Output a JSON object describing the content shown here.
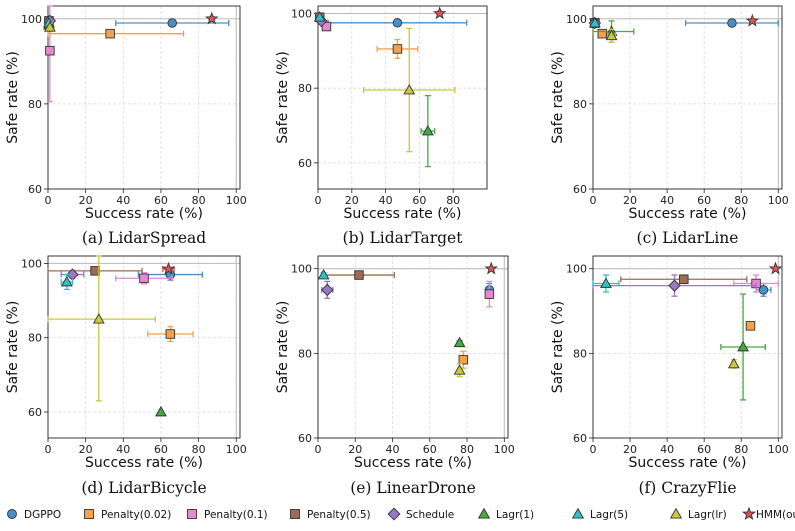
{
  "series_styles": [
    {
      "name": "DGPPO",
      "color": "#4a90c8",
      "marker": "circle"
    },
    {
      "name": "Penalty(0.02)",
      "color": "#f5a04a",
      "marker": "square"
    },
    {
      "name": "Penalty(0.1)",
      "color": "#e389cf",
      "marker": "square"
    },
    {
      "name": "Penalty(0.5)",
      "color": "#9b6b55",
      "marker": "square"
    },
    {
      "name": "Schedule",
      "color": "#9a77c9",
      "marker": "diamond"
    },
    {
      "name": "Lagr(1)",
      "color": "#45a845",
      "marker": "triangle"
    },
    {
      "name": "Lagr(5)",
      "color": "#2fc1c8",
      "marker": "triangle"
    },
    {
      "name": "Lagr(lr)",
      "color": "#c9c93a",
      "marker": "triangle"
    },
    {
      "name": "HMM(ours)",
      "color": "#e05656",
      "marker": "star"
    }
  ],
  "chart_data": [
    {
      "type": "scatter",
      "caption": "(a) LidarSpread",
      "xlabel": "Success rate (%)",
      "ylabel": "Safe rate (%)",
      "xlim": [
        0,
        102
      ],
      "ylim": [
        60,
        103
      ],
      "xticks": [
        0,
        20,
        40,
        60,
        80,
        100
      ],
      "yticks": [
        60,
        80,
        100
      ],
      "grid": true,
      "points": [
        {
          "series": "DGPPO",
          "x": 66,
          "y": 99,
          "xerr": 30,
          "yerr": 0.6
        },
        {
          "series": "Penalty(0.02)",
          "x": 33,
          "y": 96.5,
          "xerr": 39,
          "yerr": 0
        },
        {
          "series": "Penalty(0.1)",
          "x": 1,
          "y": 92.5,
          "xerr": 0,
          "yerr": 12
        },
        {
          "series": "Penalty(0.5)",
          "x": 0.5,
          "y": 99.5,
          "xerr": 0,
          "yerr": 0.5
        },
        {
          "series": "Schedule",
          "x": 1,
          "y": 99.5,
          "xerr": 0,
          "yerr": 0.3
        },
        {
          "series": "Lagr(1)",
          "x": 0.5,
          "y": 98.5,
          "xerr": 0,
          "yerr": 0.6
        },
        {
          "series": "Lagr(5)",
          "x": 0.5,
          "y": 99,
          "xerr": 0,
          "yerr": 0.4
        },
        {
          "series": "Lagr(lr)",
          "x": 1,
          "y": 98,
          "xerr": 0,
          "yerr": 1
        },
        {
          "series": "HMM(ours)",
          "x": 87,
          "y": 100,
          "xerr": 1,
          "yerr": 0.3
        }
      ]
    },
    {
      "type": "scatter",
      "caption": "(b) LidarTarget",
      "xlabel": "Success rate (%)",
      "ylabel": "Safe rate (%)",
      "xlim": [
        0,
        100
      ],
      "ylim": [
        53,
        102
      ],
      "xticks": [
        0,
        20,
        40,
        60,
        80
      ],
      "yticks": [
        60,
        80,
        100
      ],
      "grid": true,
      "points": [
        {
          "series": "DGPPO",
          "x": 47,
          "y": 97.5,
          "xerr": 41,
          "yerr": 0.6
        },
        {
          "series": "Penalty(0.02)",
          "x": 47,
          "y": 90.5,
          "xerr": 12,
          "yerr": 2.5
        },
        {
          "series": "Penalty(0.1)",
          "x": 5,
          "y": 96.5,
          "xerr": 2,
          "yerr": 1
        },
        {
          "series": "Penalty(0.5)",
          "x": 1,
          "y": 99,
          "xerr": 0.5,
          "yerr": 0.6
        },
        {
          "series": "Schedule",
          "x": 2,
          "y": 98,
          "xerr": 1,
          "yerr": 0.6
        },
        {
          "series": "Lagr(1)",
          "x": 65,
          "y": 68.5,
          "xerr": 4,
          "yerr": 9.5
        },
        {
          "series": "Lagr(5)",
          "x": 1,
          "y": 99,
          "xerr": 0.5,
          "yerr": 0.5
        },
        {
          "series": "Lagr(lr)",
          "x": 54,
          "y": 79.5,
          "xerr": 27,
          "yerr": 16.5
        },
        {
          "series": "HMM(ours)",
          "x": 72,
          "y": 100,
          "xerr": 1,
          "yerr": 0.3
        }
      ]
    },
    {
      "type": "scatter",
      "caption": "(c) LidarLine",
      "xlabel": "Success rate (%)",
      "ylabel": "Safe rate (%)",
      "xlim": [
        0,
        102
      ],
      "ylim": [
        60,
        103
      ],
      "xticks": [
        0,
        20,
        40,
        60,
        80,
        100
      ],
      "yticks": [
        60,
        80,
        100
      ],
      "grid": true,
      "points": [
        {
          "series": "DGPPO",
          "x": 75,
          "y": 99,
          "xerr": 25,
          "yerr": 0.4
        },
        {
          "series": "Penalty(0.02)",
          "x": 5,
          "y": 96.5,
          "xerr": 2,
          "yerr": 0.8
        },
        {
          "series": "Penalty(0.1)",
          "x": 1,
          "y": 99,
          "xerr": 0.5,
          "yerr": 0.5
        },
        {
          "series": "Penalty(0.5)",
          "x": 1,
          "y": 99,
          "xerr": 0.5,
          "yerr": 0.5
        },
        {
          "series": "Schedule",
          "x": 1,
          "y": 99,
          "xerr": 0.5,
          "yerr": 0.4
        },
        {
          "series": "Lagr(1)",
          "x": 10,
          "y": 97,
          "xerr": 12,
          "yerr": 2.5
        },
        {
          "series": "Lagr(5)",
          "x": 1,
          "y": 99,
          "xerr": 0.5,
          "yerr": 0.4
        },
        {
          "series": "Lagr(lr)",
          "x": 10,
          "y": 96,
          "xerr": 2,
          "yerr": 1.5
        },
        {
          "series": "HMM(ours)",
          "x": 86,
          "y": 99.5,
          "xerr": 1,
          "yerr": 0.3
        }
      ]
    },
    {
      "type": "scatter",
      "caption": "(d) LidarBicycle",
      "xlabel": "Success rate (%)",
      "ylabel": "Safe rate (%)",
      "xlim": [
        0,
        102
      ],
      "ylim": [
        53,
        102
      ],
      "xticks": [
        0,
        20,
        40,
        60,
        80,
        100
      ],
      "yticks": [
        60,
        80,
        100
      ],
      "grid": true,
      "points": [
        {
          "series": "DGPPO",
          "x": 65,
          "y": 97,
          "xerr": 17,
          "yerr": 1.5
        },
        {
          "series": "Penalty(0.02)",
          "x": 65,
          "y": 81,
          "xerr": 12,
          "yerr": 2
        },
        {
          "series": "Penalty(0.1)",
          "x": 51,
          "y": 96,
          "xerr": 15,
          "yerr": 1.5
        },
        {
          "series": "Penalty(0.5)",
          "x": 25,
          "y": 98,
          "xerr": 25,
          "yerr": 1
        },
        {
          "series": "Schedule",
          "x": 13,
          "y": 97,
          "xerr": 6,
          "yerr": 1
        },
        {
          "series": "Lagr(1)",
          "x": 60,
          "y": 60,
          "xerr": 0,
          "yerr": 0
        },
        {
          "series": "Lagr(5)",
          "x": 10,
          "y": 95,
          "xerr": 3,
          "yerr": 2
        },
        {
          "series": "Lagr(lr)",
          "x": 27,
          "y": 85,
          "xerr": 30,
          "yerr": 22
        },
        {
          "series": "HMM(ours)",
          "x": 64,
          "y": 98.5,
          "xerr": 3,
          "yerr": 0.5
        }
      ]
    },
    {
      "type": "scatter",
      "caption": "(e) LinearDrone",
      "xlabel": "Success rate (%)",
      "ylabel": "Safe rate (%)",
      "xlim": [
        0,
        102
      ],
      "ylim": [
        60,
        103
      ],
      "xticks": [
        0,
        20,
        40,
        60,
        80,
        100
      ],
      "yticks": [
        60,
        80,
        100
      ],
      "grid": true,
      "points": [
        {
          "series": "DGPPO",
          "x": 92,
          "y": 95,
          "xerr": 1,
          "yerr": 1.5
        },
        {
          "series": "Penalty(0.02)",
          "x": 78,
          "y": 78.5,
          "xerr": 2,
          "yerr": 2
        },
        {
          "series": "Penalty(0.1)",
          "x": 92,
          "y": 94,
          "xerr": 1,
          "yerr": 3
        },
        {
          "series": "Penalty(0.5)",
          "x": 22,
          "y": 98.5,
          "xerr": 19,
          "yerr": 0.5
        },
        {
          "series": "Schedule",
          "x": 5,
          "y": 95,
          "xerr": 3,
          "yerr": 2
        },
        {
          "series": "Lagr(1)",
          "x": 76,
          "y": 82.5,
          "xerr": 0.5,
          "yerr": 0.5
        },
        {
          "series": "Lagr(5)",
          "x": 3,
          "y": 98.5,
          "xerr": 1,
          "yerr": 0.6
        },
        {
          "series": "Lagr(lr)",
          "x": 76,
          "y": 76,
          "xerr": 1,
          "yerr": 1.5
        },
        {
          "series": "HMM(ours)",
          "x": 93,
          "y": 100,
          "xerr": 0.5,
          "yerr": 0.3
        }
      ]
    },
    {
      "type": "scatter",
      "caption": "(f) CrazyFlie",
      "xlabel": "Success rate (%)",
      "ylabel": "Safe rate (%)",
      "xlim": [
        0,
        102
      ],
      "ylim": [
        60,
        103
      ],
      "xticks": [
        0,
        20,
        40,
        60,
        80,
        100
      ],
      "yticks": [
        60,
        80,
        100
      ],
      "grid": true,
      "points": [
        {
          "series": "DGPPO",
          "x": 92,
          "y": 95,
          "xerr": 4,
          "yerr": 1.5
        },
        {
          "series": "Penalty(0.02)",
          "x": 85,
          "y": 86.5,
          "xerr": 0,
          "yerr": 0
        },
        {
          "series": "Penalty(0.1)",
          "x": 88,
          "y": 96.5,
          "xerr": 12,
          "yerr": 2
        },
        {
          "series": "Penalty(0.5)",
          "x": 49,
          "y": 97.5,
          "xerr": 34,
          "yerr": 1
        },
        {
          "series": "Schedule",
          "x": 44,
          "y": 96,
          "xerr": 44,
          "yerr": 2.5
        },
        {
          "series": "Lagr(1)",
          "x": 81,
          "y": 81.5,
          "xerr": 12,
          "yerr": 12.5
        },
        {
          "series": "Lagr(5)",
          "x": 7,
          "y": 96.5,
          "xerr": 7,
          "yerr": 2
        },
        {
          "series": "Lagr(lr)",
          "x": 76,
          "y": 77.5,
          "xerr": 1,
          "yerr": 1
        },
        {
          "series": "HMM(ours)",
          "x": 98.5,
          "y": 100,
          "xerr": 0.5,
          "yerr": 0.3
        }
      ]
    }
  ]
}
